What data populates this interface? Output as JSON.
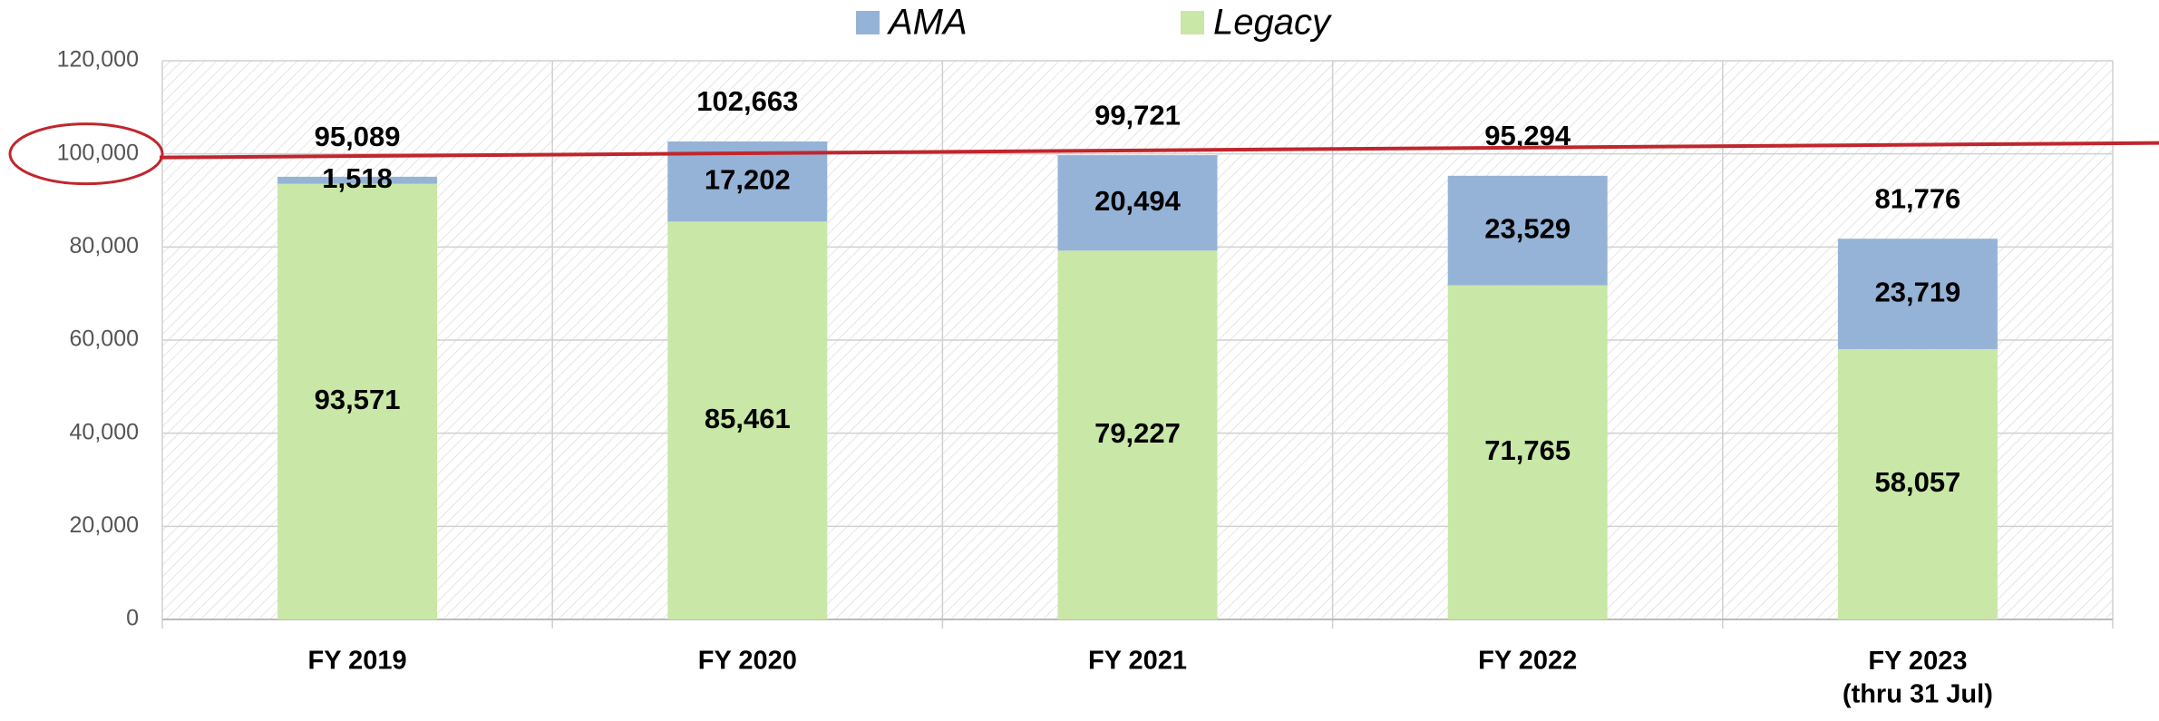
{
  "chart_data": {
    "type": "stacked-bar",
    "categories": [
      "FY 2019",
      "FY 2020",
      "FY 2021",
      "FY 2022",
      "FY 2023\n(thru 31 Jul)"
    ],
    "series": [
      {
        "name": "AMA",
        "color": "#95b3d7",
        "values": [
          1518,
          17202,
          20494,
          23529,
          23719
        ],
        "value_labels": [
          "1,518",
          "17,202",
          "20,494",
          "23,529",
          "23,719"
        ]
      },
      {
        "name": "Legacy",
        "color": "#c9e7a7",
        "values": [
          93571,
          85461,
          79227,
          71765,
          58057
        ],
        "value_labels": [
          "93,571",
          "85,461",
          "79,227",
          "71,765",
          "58,057"
        ]
      }
    ],
    "totals": [
      95089,
      102663,
      99721,
      95294,
      81776
    ],
    "total_labels": [
      "95,089",
      "102,663",
      "99,721",
      "95,294",
      "81,776"
    ],
    "ylim": [
      0,
      120000
    ],
    "yticks": [
      0,
      {
        "value": 20000,
        "label": "20,000"
      },
      {
        "value": 40000,
        "label": "40,000"
      },
      {
        "value": 60000,
        "label": "60,000"
      },
      {
        "value": 80000,
        "label": "80,000"
      },
      {
        "value": 100000,
        "label": "100,000"
      },
      {
        "value": 120000,
        "label": "120,000"
      }
    ],
    "grid": true,
    "legend": "top",
    "reference_line": {
      "value": 100000,
      "color": "#c0262d"
    }
  }
}
